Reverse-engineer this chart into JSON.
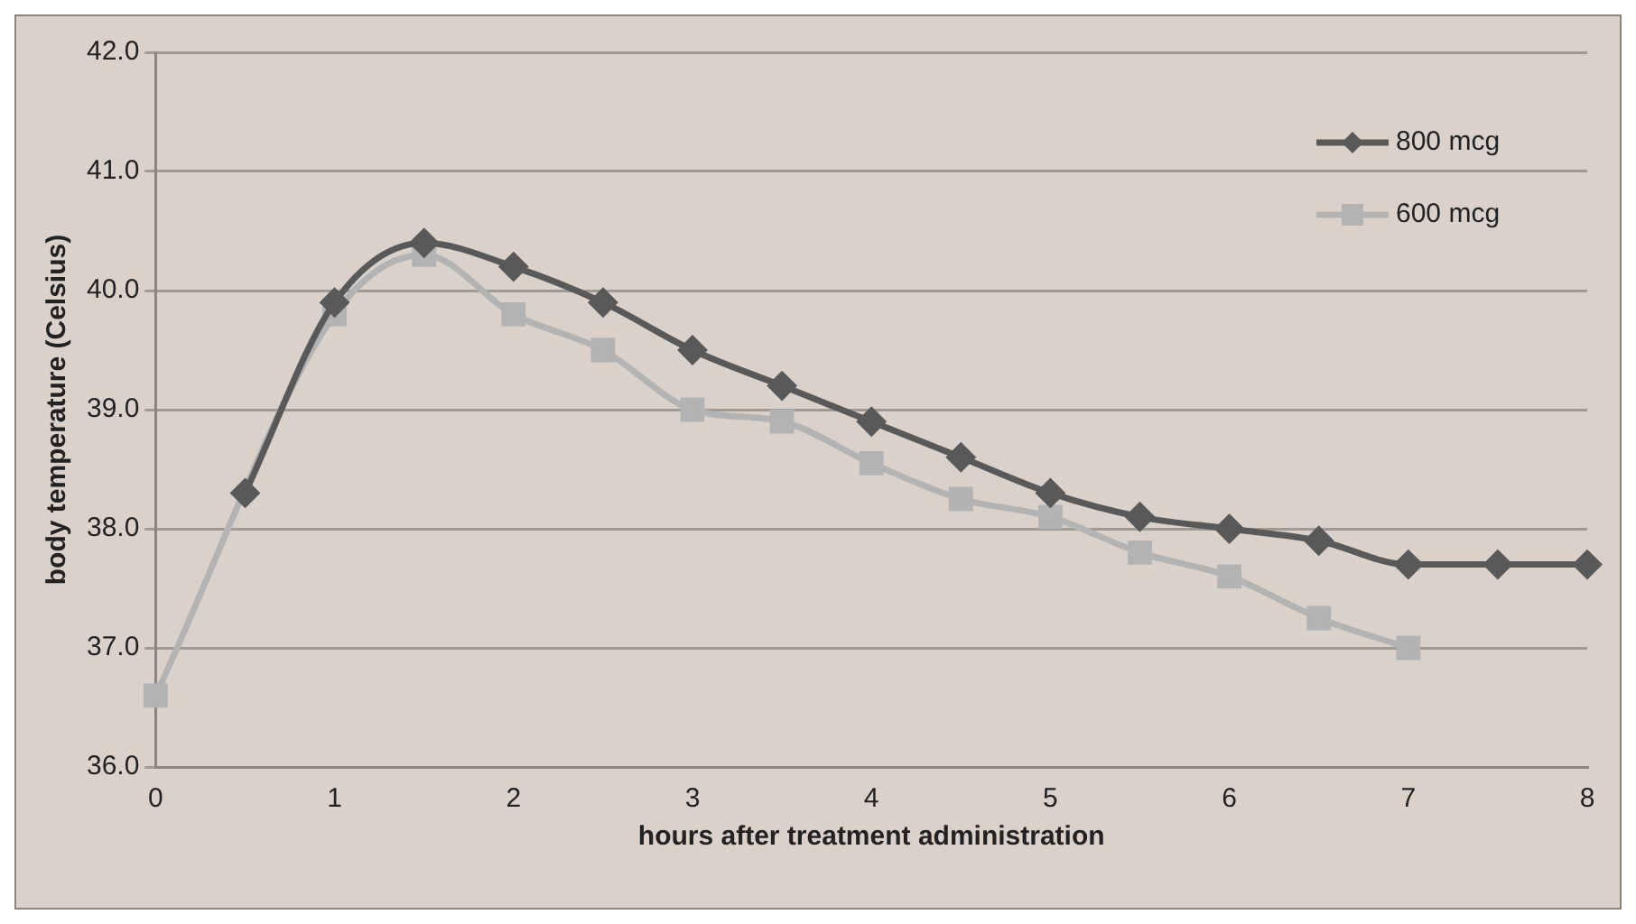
{
  "chart_data": {
    "type": "line",
    "xlabel": "hours after treatment administration",
    "ylabel": "body temperature (Celsius)",
    "xlim": [
      0,
      8
    ],
    "xticks": [
      0,
      1,
      2,
      3,
      4,
      5,
      6,
      7,
      8
    ],
    "ylim": [
      36,
      42
    ],
    "yticks": [
      {
        "value": 36,
        "label": "36.0"
      },
      {
        "value": 37,
        "label": "37.0"
      },
      {
        "value": 38,
        "label": "38.0"
      },
      {
        "value": 39,
        "label": "39.0"
      },
      {
        "value": 40,
        "label": "40.0"
      },
      {
        "value": 41,
        "label": "41.0"
      },
      {
        "value": 42,
        "label": "42.0"
      }
    ],
    "grid": "y",
    "legend": "top right",
    "series": [
      {
        "name": "800 mcg",
        "color": "#595959",
        "marker": "diamond",
        "x": [
          0.5,
          1,
          1.5,
          2,
          2.5,
          3,
          3.5,
          4,
          4.5,
          5,
          5.5,
          6,
          6.5,
          7,
          7.5,
          8
        ],
        "values": [
          38.3,
          39.9,
          40.4,
          40.2,
          39.9,
          39.5,
          39.2,
          38.9,
          38.6,
          38.3,
          38.1,
          38.0,
          37.9,
          37.7,
          37.7,
          37.7
        ]
      },
      {
        "name": "600 mcg",
        "color": "#b3b3b3",
        "marker": "square",
        "x": [
          0,
          1,
          1.5,
          2,
          2.5,
          3,
          3.5,
          4,
          4.5,
          5,
          5.5,
          6,
          6.5,
          7
        ],
        "values": [
          36.6,
          39.8,
          40.3,
          39.8,
          39.5,
          39.0,
          38.9,
          38.55,
          38.25,
          38.1,
          37.8,
          37.6,
          37.25,
          37.0
        ]
      }
    ]
  }
}
